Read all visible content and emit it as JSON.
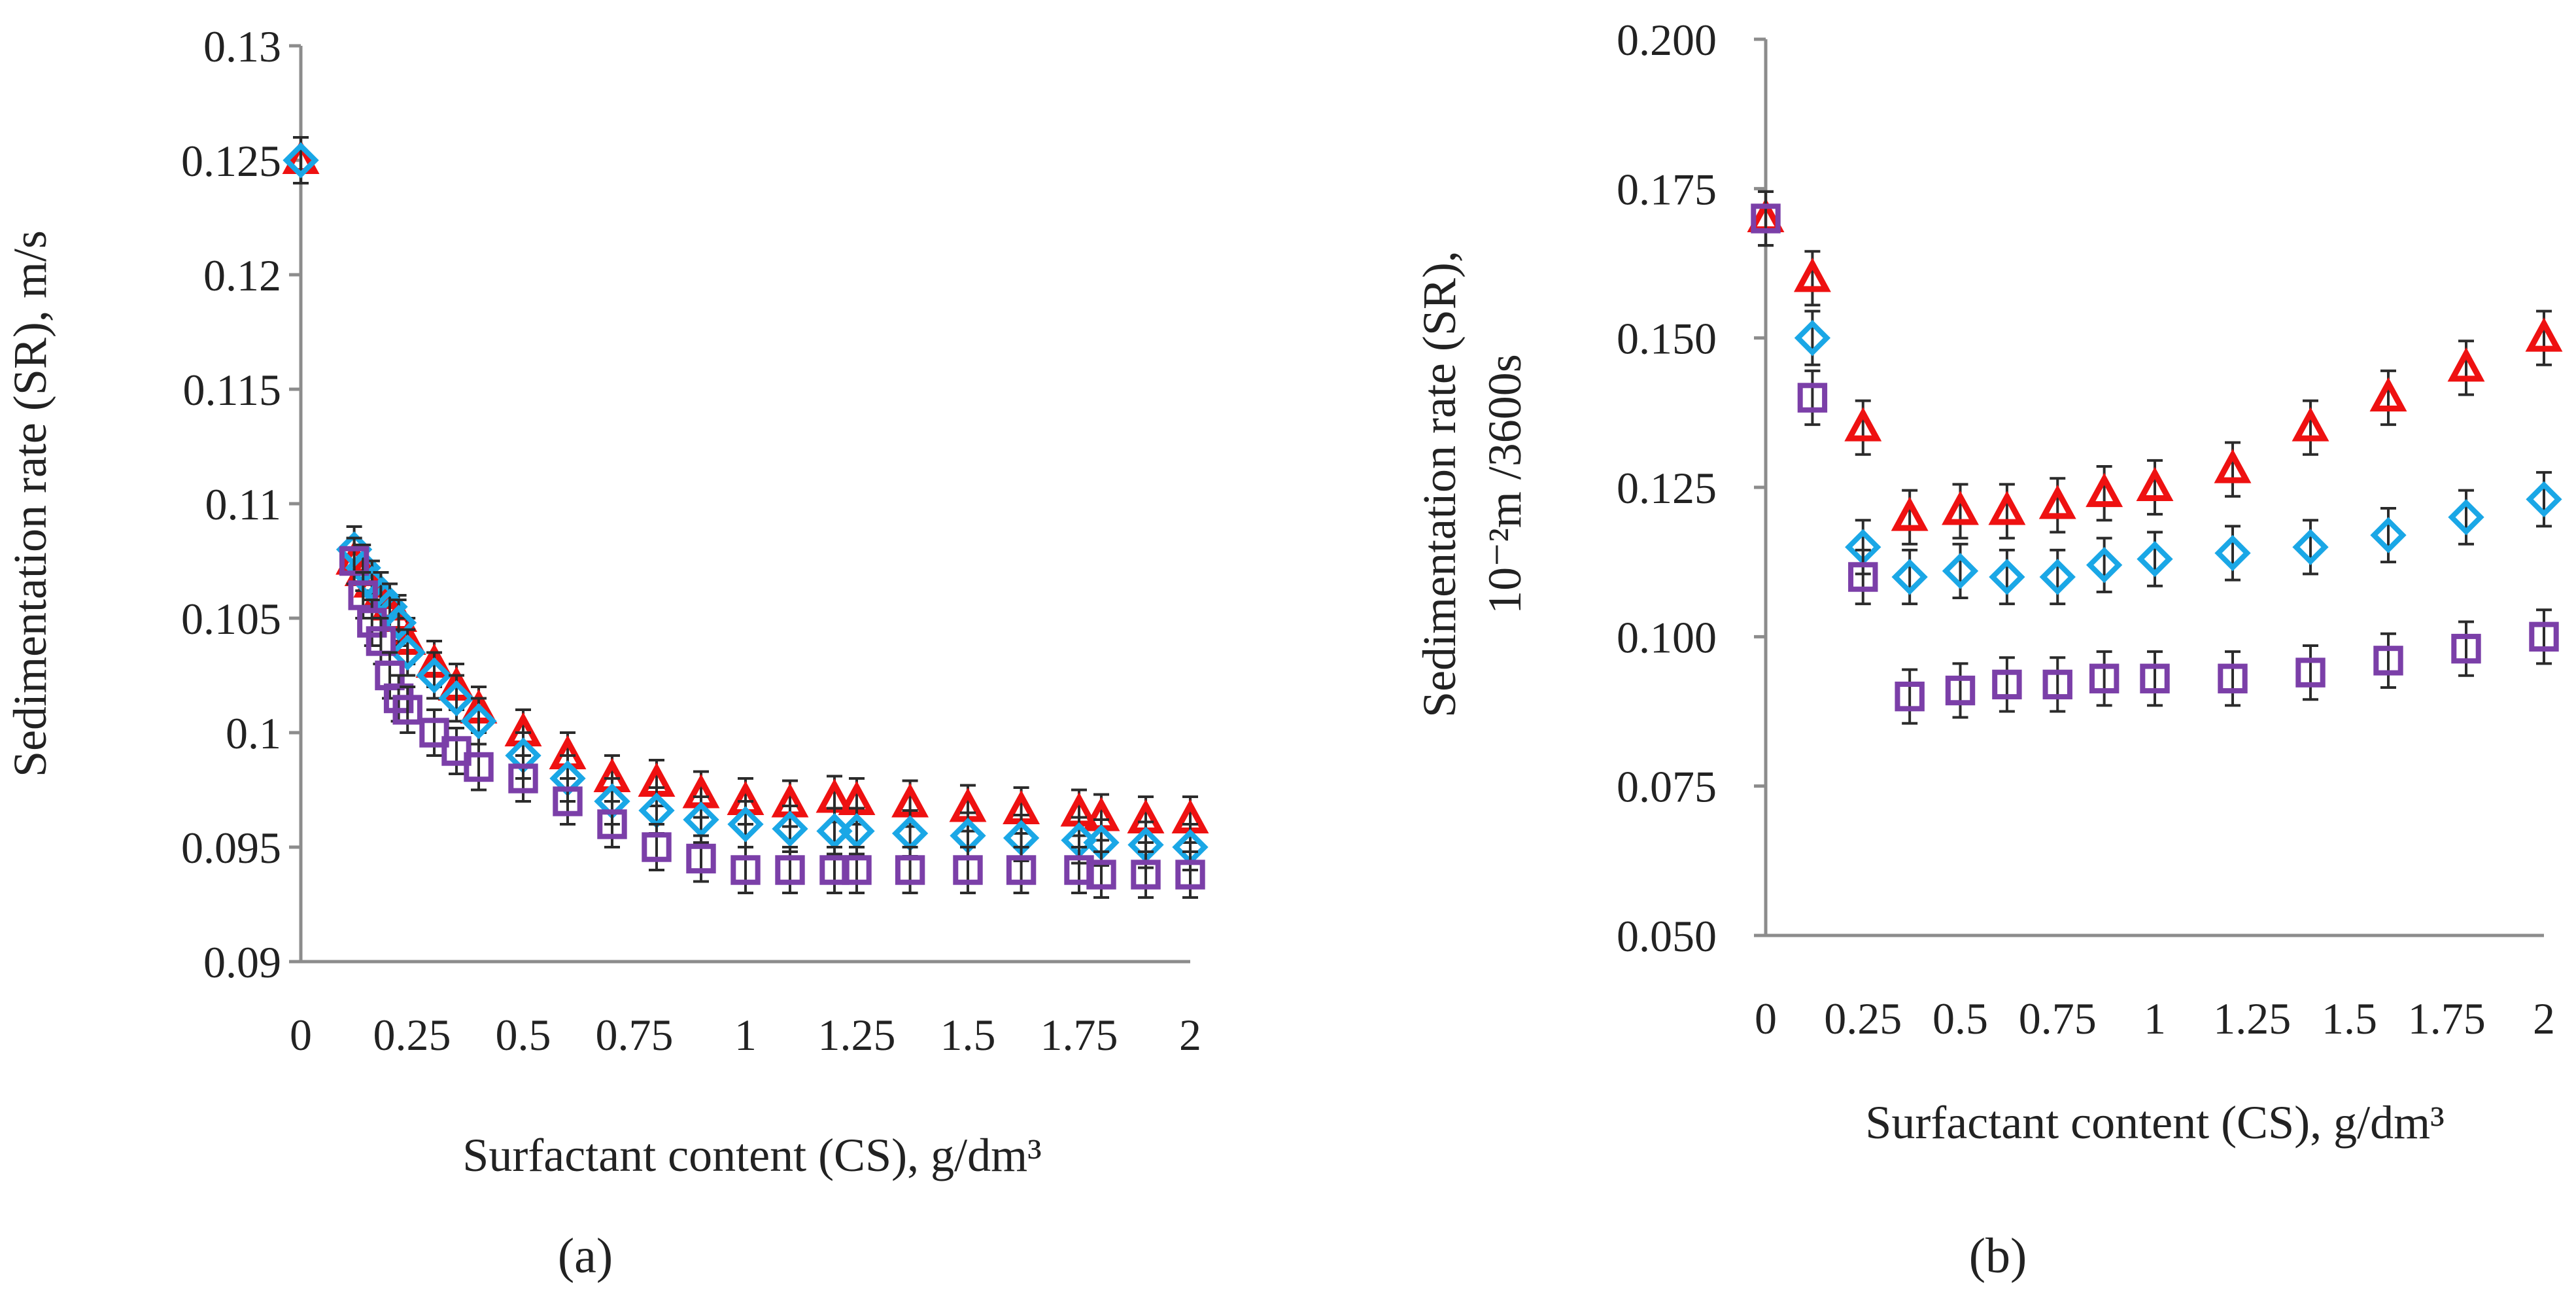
{
  "figure": {
    "panel_a_label": "(a)",
    "panel_b_label": "(b)",
    "colors": {
      "red": "#ee1111",
      "blue": "#1aa7e6",
      "purple": "#7b3fa8",
      "axis": "#8c8c8c",
      "error": "#2b2b2b"
    }
  },
  "chart_data": [
    {
      "type": "scatter",
      "panel": "a",
      "title": "",
      "xlabel": "Surfactant content (CS), g/dm³",
      "ylabel": "Sedimentation rate (SR), m/s",
      "ylabel_line2": "",
      "xlim": [
        0,
        2
      ],
      "ylim": [
        0.09,
        0.13
      ],
      "x_ticks": [
        0,
        0.25,
        0.5,
        0.75,
        1,
        1.25,
        1.5,
        1.75,
        2
      ],
      "x_tick_labels": [
        "0",
        "0.25",
        "0.5",
        "0.75",
        "1",
        "1.25",
        "1.5",
        "1.75",
        "2"
      ],
      "y_ticks": [
        0.09,
        0.095,
        0.1,
        0.105,
        0.11,
        0.115,
        0.12,
        0.125,
        0.13
      ],
      "y_tick_labels": [
        "0.09",
        "0.095",
        "0.1",
        "0.105",
        "0.11",
        "0.115",
        "0.12",
        "0.125",
        "0.13"
      ],
      "error": 0.001,
      "series": [
        {
          "name": "triangle",
          "marker": "triangle",
          "color": "#ee1111",
          "x": [
            0,
            0.12,
            0.14,
            0.16,
            0.18,
            0.2,
            0.22,
            0.24,
            0.3,
            0.35,
            0.4,
            0.5,
            0.6,
            0.7,
            0.8,
            0.9,
            1.0,
            1.1,
            1.2,
            1.25,
            1.37,
            1.5,
            1.62,
            1.75,
            1.8,
            1.9,
            2.0
          ],
          "y": [
            0.125,
            0.1075,
            0.107,
            0.1065,
            0.106,
            0.1055,
            0.105,
            0.104,
            0.103,
            0.102,
            0.101,
            0.1,
            0.099,
            0.098,
            0.0978,
            0.0973,
            0.097,
            0.0969,
            0.0971,
            0.097,
            0.0969,
            0.0967,
            0.0966,
            0.0965,
            0.0963,
            0.0962,
            0.0962
          ]
        },
        {
          "name": "diamond",
          "marker": "diamond",
          "color": "#1aa7e6",
          "x": [
            0,
            0.12,
            0.14,
            0.16,
            0.18,
            0.2,
            0.22,
            0.24,
            0.3,
            0.35,
            0.4,
            0.5,
            0.6,
            0.7,
            0.8,
            0.9,
            1.0,
            1.1,
            1.2,
            1.25,
            1.37,
            1.5,
            1.62,
            1.75,
            1.8,
            1.9,
            2.0
          ],
          "y": [
            0.125,
            0.108,
            0.1072,
            0.1065,
            0.106,
            0.1055,
            0.1048,
            0.1035,
            0.1025,
            0.1015,
            0.1005,
            0.099,
            0.098,
            0.097,
            0.0966,
            0.0962,
            0.096,
            0.0958,
            0.0957,
            0.0957,
            0.0956,
            0.0955,
            0.0954,
            0.0953,
            0.0952,
            0.0951,
            0.095
          ]
        },
        {
          "name": "square",
          "marker": "square",
          "color": "#7b3fa8",
          "x": [
            0.12,
            0.14,
            0.16,
            0.18,
            0.2,
            0.22,
            0.24,
            0.3,
            0.35,
            0.4,
            0.5,
            0.6,
            0.7,
            0.8,
            0.9,
            1.0,
            1.1,
            1.2,
            1.25,
            1.37,
            1.5,
            1.62,
            1.75,
            1.8,
            1.9,
            2.0
          ],
          "y": [
            0.1075,
            0.106,
            0.1048,
            0.104,
            0.1025,
            0.1015,
            0.101,
            0.1,
            0.0992,
            0.0985,
            0.098,
            0.097,
            0.096,
            0.095,
            0.0945,
            0.094,
            0.094,
            0.094,
            0.094,
            0.094,
            0.094,
            0.094,
            0.094,
            0.0938,
            0.0938,
            0.0938
          ]
        }
      ]
    },
    {
      "type": "scatter",
      "panel": "b",
      "title": "",
      "xlabel": "Surfactant content (CS), g/dm³",
      "ylabel": "Sedimentation rate (SR),",
      "ylabel_line2": "10⁻²m /3600s",
      "xlim": [
        0,
        2
      ],
      "ylim": [
        0.05,
        0.2
      ],
      "x_ticks": [
        0,
        0.25,
        0.5,
        0.75,
        1,
        1.25,
        1.5,
        1.75,
        2
      ],
      "x_tick_labels": [
        "0",
        "0.25",
        "0.5",
        "0.75",
        "1",
        "1.25",
        "1.5",
        "1.75",
        "2"
      ],
      "y_ticks": [
        0.05,
        0.075,
        0.1,
        0.125,
        0.15,
        0.175,
        0.2
      ],
      "y_tick_labels": [
        "0.050",
        "0.075",
        "0.100",
        "0.125",
        "0.150",
        "0.175",
        "0.200"
      ],
      "error": 0.0045,
      "series": [
        {
          "name": "triangle",
          "marker": "triangle",
          "color": "#ee1111",
          "x": [
            0,
            0.12,
            0.25,
            0.37,
            0.5,
            0.62,
            0.75,
            0.87,
            1.0,
            1.2,
            1.4,
            1.6,
            1.8,
            2.0
          ],
          "y": [
            0.17,
            0.16,
            0.135,
            0.12,
            0.121,
            0.121,
            0.122,
            0.124,
            0.125,
            0.128,
            0.135,
            0.14,
            0.145,
            0.15
          ]
        },
        {
          "name": "diamond",
          "marker": "diamond",
          "color": "#1aa7e6",
          "x": [
            0.12,
            0.25,
            0.37,
            0.5,
            0.62,
            0.75,
            0.87,
            1.0,
            1.2,
            1.4,
            1.6,
            1.8,
            2.0
          ],
          "y": [
            0.15,
            0.115,
            0.11,
            0.111,
            0.11,
            0.11,
            0.112,
            0.113,
            0.114,
            0.115,
            0.117,
            0.12,
            0.123
          ]
        },
        {
          "name": "square",
          "marker": "square",
          "color": "#7b3fa8",
          "x": [
            0,
            0.12,
            0.25,
            0.37,
            0.5,
            0.62,
            0.75,
            0.87,
            1.0,
            1.2,
            1.4,
            1.6,
            1.8,
            2.0
          ],
          "y": [
            0.17,
            0.14,
            0.11,
            0.09,
            0.091,
            0.092,
            0.092,
            0.093,
            0.093,
            0.093,
            0.094,
            0.096,
            0.098,
            0.1
          ]
        }
      ]
    }
  ]
}
